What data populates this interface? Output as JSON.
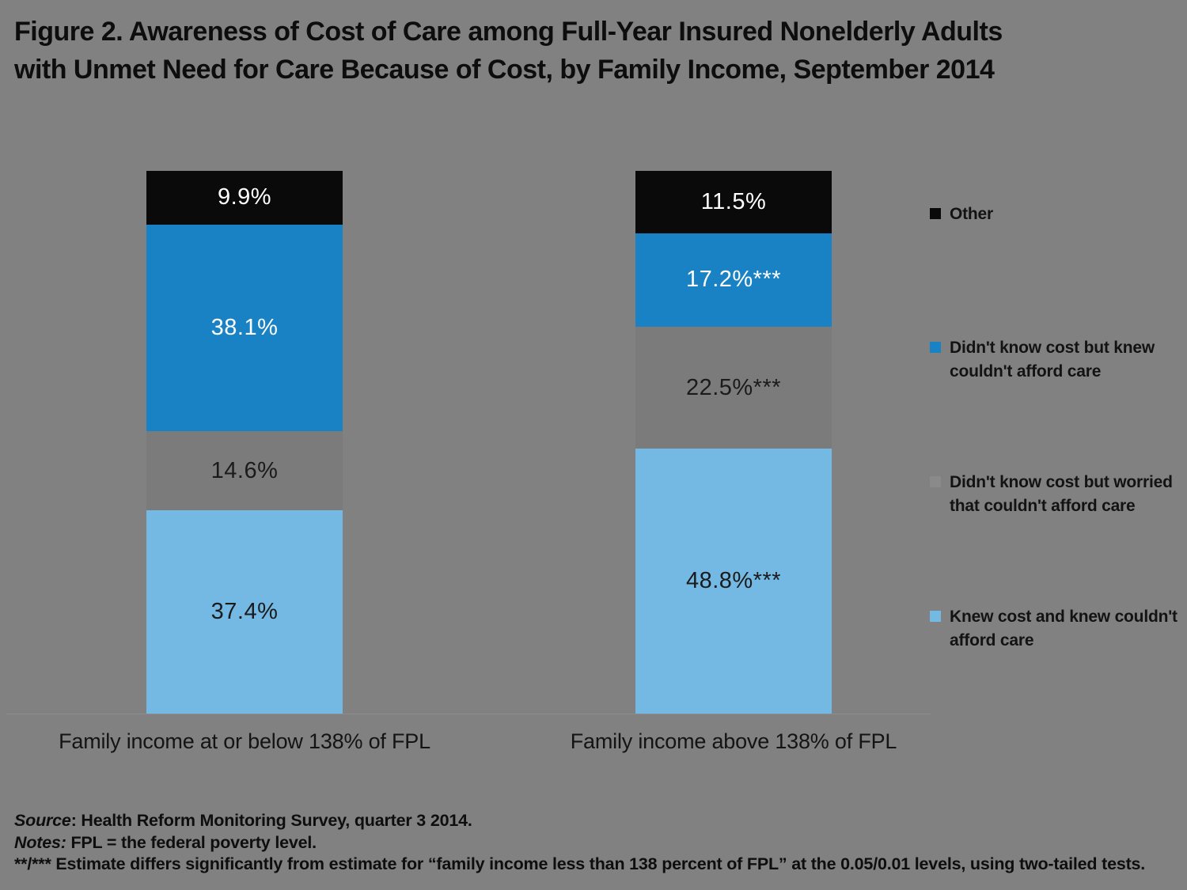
{
  "title": {
    "line1": "Figure 2. Awareness of Cost of Care among Full-Year Insured Nonelderly Adults",
    "line2": "with Unmet Need for Care Because of Cost, by Family Income, September 2014"
  },
  "chart_data": {
    "type": "bar",
    "stacked": true,
    "categories": [
      "Family income at or below 138% of FPL",
      "Family income above 138% of FPL"
    ],
    "series": [
      {
        "name": "Knew cost and knew couldn't afford care",
        "color": "#74B9E3",
        "label_color": "#1b1b1b",
        "values": [
          37.4,
          48.8
        ],
        "labels": [
          "37.4%",
          "48.8%***"
        ]
      },
      {
        "name": "Didn't know cost but worried that couldn't afford care",
        "color": "#7B7B7B",
        "label_color": "#1b1b1b",
        "values": [
          14.6,
          22.5
        ],
        "labels": [
          "14.6%",
          "22.5%***"
        ]
      },
      {
        "name": "Didn't know cost but knew couldn't afford care",
        "color": "#1982C4",
        "label_color": "#ffffff",
        "values": [
          38.1,
          17.2
        ],
        "labels": [
          "38.1%",
          "17.2%***"
        ]
      },
      {
        "name": "Other",
        "color": "#0A0A0A",
        "label_color": "#ffffff",
        "values": [
          9.9,
          11.5
        ],
        "labels": [
          "9.9%",
          "11.5%"
        ]
      }
    ],
    "ylim": [
      0,
      100
    ],
    "value_unit": "%",
    "grid": false,
    "legend_position": "right",
    "background_color": "#818181"
  },
  "legend": {
    "items": [
      {
        "label": "Other",
        "color": "#0A0A0A"
      },
      {
        "label": "Didn't know cost but knew couldn't afford care",
        "color": "#1982C4"
      },
      {
        "label": "Didn't know cost but worried that couldn't afford care",
        "color": "#8A8A8A"
      },
      {
        "label": "Knew cost and knew couldn't afford care",
        "color": "#74B9E3"
      }
    ]
  },
  "footnotes": {
    "source_prefix": "Source",
    "source_rest": ": Health Reform Monitoring Survey, quarter 3 2014.",
    "notes_prefix": "Notes:",
    "notes_rest": " FPL = the federal poverty level.",
    "sig_prefix": "**/***",
    "sig_rest": " Estimate differs significantly from estimate for “family income less than 138 percent of FPL” at the 0.05/0.01 levels, using two-tailed tests."
  }
}
